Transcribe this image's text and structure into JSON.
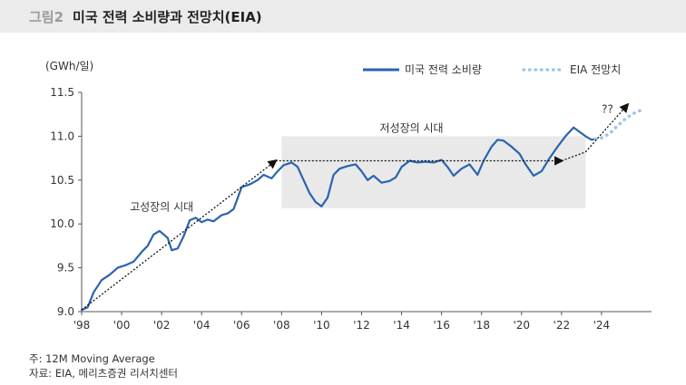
{
  "header": {
    "figure_number": "그림2",
    "title": "미국 전력 소비량과 전망치(EIA)"
  },
  "footer": {
    "note": "주: 12M Moving Average",
    "source": "자료: EIA, 메리츠증권 리서치센터"
  },
  "chart_data": {
    "type": "line",
    "title": "미국 전력 소비량과 전망치(EIA)",
    "ylabel": "(GWh/일)",
    "xlabel": "",
    "ylim": [
      9.0,
      11.5
    ],
    "xlim": [
      1998,
      2026.5
    ],
    "yticks": [
      9.0,
      9.5,
      10.0,
      10.5,
      11.0,
      11.5
    ],
    "ytick_labels": [
      "9.0",
      "9.5",
      "10.0",
      "10.5",
      "11.0",
      "11.5"
    ],
    "xticks": [
      1998,
      2000,
      2002,
      2004,
      2006,
      2008,
      2010,
      2012,
      2014,
      2016,
      2018,
      2020,
      2022,
      2024
    ],
    "xtick_labels": [
      "'98",
      "'00",
      "'02",
      "'04",
      "'06",
      "'08",
      "'10",
      "'12",
      "'14",
      "'16",
      "'18",
      "'20",
      "'22",
      "'24"
    ],
    "grid": false,
    "legend_position": "top-right",
    "series": [
      {
        "name": "미국 전력 소비량",
        "color": "#2a63b0",
        "style": "solid",
        "points": [
          [
            1998.0,
            9.02
          ],
          [
            1998.3,
            9.05
          ],
          [
            1998.6,
            9.22
          ],
          [
            1999.0,
            9.36
          ],
          [
            1999.4,
            9.42
          ],
          [
            1999.8,
            9.5
          ],
          [
            2000.2,
            9.53
          ],
          [
            2000.6,
            9.57
          ],
          [
            2001.0,
            9.68
          ],
          [
            2001.3,
            9.75
          ],
          [
            2001.6,
            9.88
          ],
          [
            2001.9,
            9.92
          ],
          [
            2002.3,
            9.84
          ],
          [
            2002.5,
            9.7
          ],
          [
            2002.8,
            9.72
          ],
          [
            2003.1,
            9.86
          ],
          [
            2003.4,
            10.04
          ],
          [
            2003.7,
            10.07
          ],
          [
            2004.0,
            10.02
          ],
          [
            2004.3,
            10.05
          ],
          [
            2004.6,
            10.03
          ],
          [
            2005.0,
            10.1
          ],
          [
            2005.3,
            10.12
          ],
          [
            2005.6,
            10.17
          ],
          [
            2006.0,
            10.42
          ],
          [
            2006.4,
            10.45
          ],
          [
            2006.8,
            10.5
          ],
          [
            2007.1,
            10.56
          ],
          [
            2007.5,
            10.52
          ],
          [
            2007.8,
            10.6
          ],
          [
            2008.1,
            10.67
          ],
          [
            2008.5,
            10.7
          ],
          [
            2008.8,
            10.65
          ],
          [
            2009.1,
            10.5
          ],
          [
            2009.4,
            10.35
          ],
          [
            2009.7,
            10.25
          ],
          [
            2010.0,
            10.2
          ],
          [
            2010.3,
            10.3
          ],
          [
            2010.6,
            10.56
          ],
          [
            2010.9,
            10.63
          ],
          [
            2011.3,
            10.66
          ],
          [
            2011.7,
            10.68
          ],
          [
            2012.0,
            10.6
          ],
          [
            2012.3,
            10.5
          ],
          [
            2012.6,
            10.55
          ],
          [
            2013.0,
            10.47
          ],
          [
            2013.4,
            10.49
          ],
          [
            2013.7,
            10.53
          ],
          [
            2014.0,
            10.65
          ],
          [
            2014.4,
            10.72
          ],
          [
            2014.8,
            10.7
          ],
          [
            2015.2,
            10.71
          ],
          [
            2015.6,
            10.7
          ],
          [
            2016.0,
            10.73
          ],
          [
            2016.3,
            10.65
          ],
          [
            2016.6,
            10.55
          ],
          [
            2017.0,
            10.63
          ],
          [
            2017.4,
            10.68
          ],
          [
            2017.8,
            10.56
          ],
          [
            2018.1,
            10.72
          ],
          [
            2018.5,
            10.88
          ],
          [
            2018.8,
            10.96
          ],
          [
            2019.1,
            10.95
          ],
          [
            2019.5,
            10.88
          ],
          [
            2019.9,
            10.8
          ],
          [
            2020.2,
            10.68
          ],
          [
            2020.6,
            10.55
          ],
          [
            2021.0,
            10.6
          ],
          [
            2021.4,
            10.75
          ],
          [
            2021.8,
            10.88
          ],
          [
            2022.2,
            11.0
          ],
          [
            2022.6,
            11.1
          ],
          [
            2022.9,
            11.05
          ],
          [
            2023.2,
            11.0
          ],
          [
            2023.5,
            10.96
          ],
          [
            2023.7,
            10.97
          ]
        ]
      },
      {
        "name": "EIA 전망치",
        "color": "#9fc5ea",
        "style": "dotted",
        "points": [
          [
            2023.7,
            10.97
          ],
          [
            2024.0,
            10.98
          ],
          [
            2024.4,
            11.03
          ],
          [
            2024.8,
            11.12
          ],
          [
            2025.2,
            11.2
          ],
          [
            2025.6,
            11.26
          ],
          [
            2026.0,
            11.3
          ]
        ]
      }
    ],
    "annotations": [
      {
        "text": "고성장의 시대",
        "x": 2002.0,
        "y": 10.15
      },
      {
        "text": "저성장의 시대",
        "x": 2014.5,
        "y": 11.05
      },
      {
        "text": "??",
        "x": 2024.3,
        "y": 11.27
      }
    ],
    "trend_arrows": [
      {
        "from": [
          1998.0,
          9.02
        ],
        "to": [
          2007.7,
          10.72
        ]
      },
      {
        "from": [
          2007.7,
          10.72
        ],
        "to": [
          2022.0,
          10.72
        ]
      },
      {
        "from": [
          2022.0,
          10.72
        ],
        "to": [
          2023.2,
          10.82
        ]
      },
      {
        "from": [
          2023.2,
          10.82
        ],
        "to": [
          2025.3,
          11.36
        ]
      }
    ],
    "highlight_region": {
      "x": [
        2008.0,
        2023.2
      ],
      "y": [
        10.18,
        11.0
      ]
    }
  }
}
